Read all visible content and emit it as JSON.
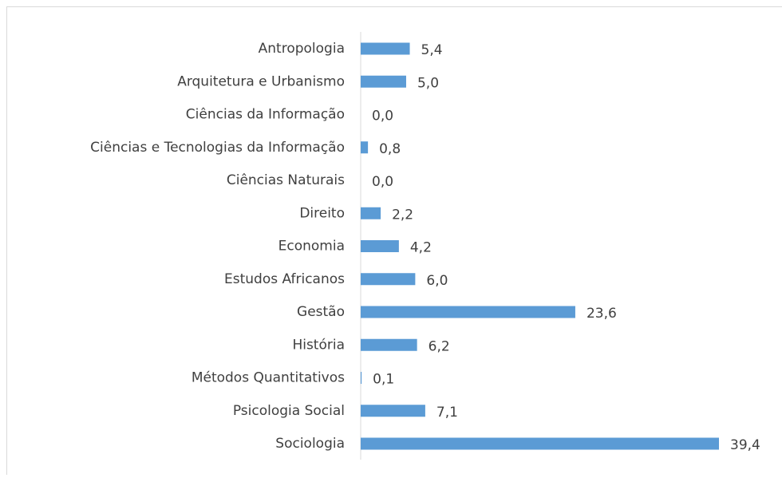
{
  "chart_data": {
    "type": "bar",
    "orientation": "horizontal",
    "color": "#5b9bd5",
    "categories": [
      "Antropologia",
      "Arquitetura e Urbanismo",
      "Ciências da Informação",
      "Ciências e Tecnologias da Informação",
      "Ciências Naturais",
      "Direito",
      "Economia",
      "Estudos Africanos",
      "Gestão",
      "História",
      "Métodos Quantitativos",
      "Psicologia Social",
      "Sociologia"
    ],
    "values": [
      5.4,
      5.0,
      0.0,
      0.8,
      0.0,
      2.2,
      4.2,
      6.0,
      23.6,
      6.2,
      0.1,
      7.1,
      39.4
    ],
    "value_labels": [
      "5,4",
      "5,0",
      "0,0",
      "0,8",
      "0,0",
      "2,2",
      "4,2",
      "6,0",
      "23,6",
      "6,2",
      "0,1",
      "7,1",
      "39,4"
    ]
  }
}
